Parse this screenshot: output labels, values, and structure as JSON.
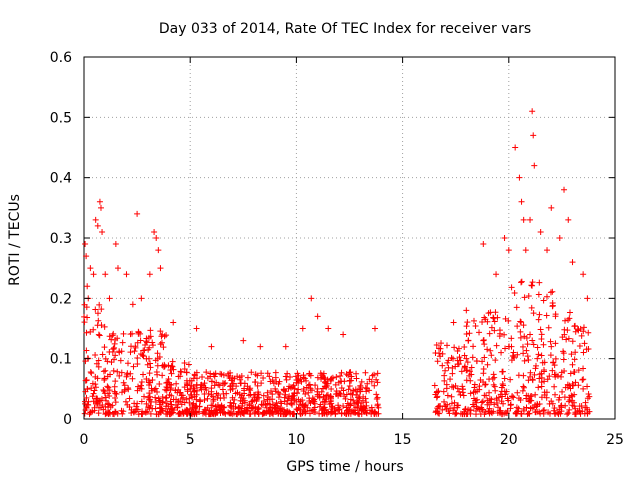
{
  "chart_data": {
    "type": "scatter",
    "title": "Day 033 of 2014, Rate Of TEC Index for receiver vars",
    "xlabel": "GPS time / hours",
    "ylabel": "ROTI / TECUs",
    "xlim": [
      0,
      25
    ],
    "ylim": [
      0,
      0.6
    ],
    "grid": true,
    "marker": "plus",
    "color": "#ff0000",
    "x_ticks": [
      0,
      5,
      10,
      15,
      20,
      25
    ],
    "x_tick_labels": [
      "0",
      "5",
      "10",
      "15",
      "20",
      "25"
    ],
    "y_ticks": [
      0,
      0.1,
      0.2,
      0.3,
      0.4,
      0.5,
      0.6
    ],
    "y_tick_labels": [
      "0",
      "0.1",
      "0.2",
      "0.3",
      "0.4",
      "0.5",
      "0.6"
    ],
    "series": [
      {
        "name": "vars",
        "data_gap_hours": [
          13.9,
          16.5
        ],
        "points": [
          [
            0.05,
            0.29
          ],
          [
            0.1,
            0.27
          ],
          [
            0.15,
            0.22
          ],
          [
            0.2,
            0.2
          ],
          [
            0.3,
            0.25
          ],
          [
            0.45,
            0.24
          ],
          [
            0.55,
            0.33
          ],
          [
            0.65,
            0.32
          ],
          [
            0.75,
            0.36
          ],
          [
            0.8,
            0.35
          ],
          [
            0.85,
            0.31
          ],
          [
            1.0,
            0.24
          ],
          [
            1.2,
            0.2
          ],
          [
            1.5,
            0.29
          ],
          [
            1.6,
            0.25
          ],
          [
            2.0,
            0.24
          ],
          [
            2.3,
            0.19
          ],
          [
            2.5,
            0.34
          ],
          [
            2.7,
            0.2
          ],
          [
            3.1,
            0.24
          ],
          [
            3.3,
            0.31
          ],
          [
            3.4,
            0.3
          ],
          [
            3.5,
            0.28
          ],
          [
            3.6,
            0.25
          ],
          [
            4.2,
            0.16
          ],
          [
            5.3,
            0.15
          ],
          [
            6.0,
            0.12
          ],
          [
            7.5,
            0.13
          ],
          [
            8.3,
            0.12
          ],
          [
            9.5,
            0.12
          ],
          [
            10.3,
            0.15
          ],
          [
            10.7,
            0.2
          ],
          [
            11.0,
            0.17
          ],
          [
            11.5,
            0.15
          ],
          [
            12.2,
            0.14
          ],
          [
            13.7,
            0.15
          ],
          [
            17.4,
            0.16
          ],
          [
            18.0,
            0.18
          ],
          [
            18.8,
            0.29
          ],
          [
            19.4,
            0.24
          ],
          [
            19.8,
            0.3
          ],
          [
            20.0,
            0.28
          ],
          [
            20.3,
            0.45
          ],
          [
            20.5,
            0.4
          ],
          [
            20.6,
            0.36
          ],
          [
            20.7,
            0.33
          ],
          [
            20.8,
            0.28
          ],
          [
            21.0,
            0.33
          ],
          [
            21.1,
            0.51
          ],
          [
            21.15,
            0.47
          ],
          [
            21.2,
            0.42
          ],
          [
            21.5,
            0.31
          ],
          [
            21.8,
            0.28
          ],
          [
            22.0,
            0.35
          ],
          [
            22.4,
            0.3
          ],
          [
            22.6,
            0.38
          ],
          [
            22.8,
            0.33
          ],
          [
            23.0,
            0.26
          ],
          [
            23.5,
            0.24
          ],
          [
            23.7,
            0.2
          ],
          [
            0.2,
            0.1
          ],
          [
            1.0,
            0.08
          ],
          [
            2.0,
            0.07
          ],
          [
            3.0,
            0.09
          ],
          [
            4.0,
            0.06
          ],
          [
            5.0,
            0.05
          ],
          [
            6.0,
            0.04
          ],
          [
            7.0,
            0.05
          ],
          [
            8.0,
            0.04
          ],
          [
            9.0,
            0.05
          ],
          [
            10.0,
            0.06
          ],
          [
            11.0,
            0.05
          ],
          [
            12.0,
            0.06
          ],
          [
            13.0,
            0.05
          ],
          [
            17.0,
            0.08
          ],
          [
            18.0,
            0.1
          ],
          [
            19.0,
            0.09
          ],
          [
            20.0,
            0.12
          ],
          [
            21.0,
            0.14
          ],
          [
            22.0,
            0.12
          ],
          [
            23.0,
            0.09
          ],
          [
            23.5,
            0.05
          ]
        ]
      }
    ]
  }
}
